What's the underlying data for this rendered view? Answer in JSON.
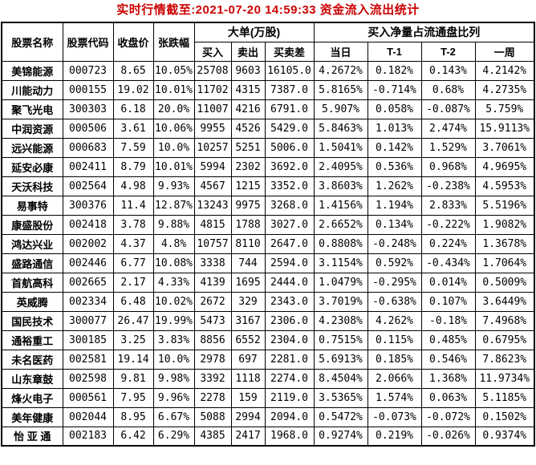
{
  "title": "实时行情截至:2021-07-20 14:59:33 资金流入流出统计",
  "colors": {
    "title_text": "#cc0000",
    "stock_name_text": "#1e5f8e",
    "stock_code_text": "#2171a8",
    "data_text": "#000000",
    "border": "#000000",
    "background": "#ffffff"
  },
  "table": {
    "headers": {
      "stock_name": "股票名称",
      "stock_code": "股票代码",
      "close_price": "收盘价",
      "change_pct": "张跌幅",
      "big_order_group": "大单(万股)",
      "buy": "买入",
      "sell": "卖出",
      "buy_sell_diff": "买卖差",
      "net_buy_group": "买入净量占流通盘比列",
      "day": "当日",
      "t1": "T-1",
      "t2": "T-2",
      "week": "一周"
    },
    "rows": [
      [
        "美锦能源",
        "000723",
        "8.65",
        "10.05%",
        "25708",
        "9603",
        "16105.0",
        "4.2672%",
        "0.182%",
        "0.143%",
        "4.2142%"
      ],
      [
        "川能动力",
        "000155",
        "19.02",
        "10.01%",
        "11702",
        "4315",
        "7387.0",
        "5.8165%",
        "-0.714%",
        "0.68%",
        "4.2735%"
      ],
      [
        "聚飞光电",
        "300303",
        "6.18",
        "20.0%",
        "11007",
        "4216",
        "6791.0",
        "5.907%",
        "0.058%",
        "-0.087%",
        "5.759%"
      ],
      [
        "中润资源",
        "000506",
        "3.61",
        "10.06%",
        "9955",
        "4526",
        "5429.0",
        "5.8463%",
        "1.013%",
        "2.474%",
        "15.9113%"
      ],
      [
        "远兴能源",
        "000683",
        "7.59",
        "10.0%",
        "10257",
        "5251",
        "5006.0",
        "1.5041%",
        "0.142%",
        "1.529%",
        "3.7061%"
      ],
      [
        "延安必康",
        "002411",
        "8.79",
        "10.01%",
        "5994",
        "2302",
        "3692.0",
        "2.4095%",
        "0.536%",
        "0.968%",
        "4.9695%"
      ],
      [
        "天沃科技",
        "002564",
        "4.98",
        "9.93%",
        "4567",
        "1215",
        "3352.0",
        "3.8603%",
        "1.262%",
        "-0.238%",
        "4.5953%"
      ],
      [
        "易事特",
        "300376",
        "11.4",
        "12.87%",
        "13243",
        "9975",
        "3268.0",
        "1.4156%",
        "1.194%",
        "2.833%",
        "5.5196%"
      ],
      [
        "康盛股份",
        "002418",
        "3.78",
        "9.88%",
        "4815",
        "1788",
        "3027.0",
        "2.6652%",
        "0.134%",
        "-0.222%",
        "1.9082%"
      ],
      [
        "鸿达兴业",
        "002002",
        "4.37",
        "4.8%",
        "10757",
        "8110",
        "2647.0",
        "0.8808%",
        "-0.248%",
        "0.224%",
        "1.3678%"
      ],
      [
        "盛路通信",
        "002446",
        "6.77",
        "10.08%",
        "3338",
        "744",
        "2594.0",
        "3.1154%",
        "0.592%",
        "-0.434%",
        "1.7064%"
      ],
      [
        "首航高科",
        "002665",
        "2.17",
        "4.33%",
        "4139",
        "1695",
        "2444.0",
        "1.0479%",
        "-0.295%",
        "0.014%",
        "0.5009%"
      ],
      [
        "英威腾",
        "002334",
        "6.48",
        "10.02%",
        "2672",
        "329",
        "2343.0",
        "3.7019%",
        "-0.638%",
        "0.107%",
        "3.6449%"
      ],
      [
        "国民技术",
        "300077",
        "26.47",
        "19.99%",
        "5473",
        "3167",
        "2306.0",
        "4.2308%",
        "4.262%",
        "-0.18%",
        "7.4968%"
      ],
      [
        "通裕重工",
        "300185",
        "3.25",
        "3.83%",
        "8856",
        "6552",
        "2304.0",
        "0.7515%",
        "0.115%",
        "0.485%",
        "0.6795%"
      ],
      [
        "未名医药",
        "002581",
        "19.14",
        "10.0%",
        "2978",
        "697",
        "2281.0",
        "5.6913%",
        "0.185%",
        "0.546%",
        "7.8623%"
      ],
      [
        "山东章鼓",
        "002598",
        "9.81",
        "9.98%",
        "3392",
        "1118",
        "2274.0",
        "8.4504%",
        "2.066%",
        "1.368%",
        "11.9734%"
      ],
      [
        "烽火电子",
        "000561",
        "7.95",
        "9.96%",
        "2278",
        "159",
        "2119.0",
        "3.5365%",
        "1.574%",
        "0.063%",
        "5.1185%"
      ],
      [
        "美年健康",
        "002044",
        "8.95",
        "6.67%",
        "5088",
        "2994",
        "2094.0",
        "0.5472%",
        "-0.073%",
        "-0.072%",
        "0.1502%"
      ],
      [
        "怡 亚 通",
        "002183",
        "6.42",
        "6.29%",
        "4385",
        "2417",
        "1968.0",
        "0.9274%",
        "0.219%",
        "-0.026%",
        "0.9374%"
      ]
    ]
  }
}
